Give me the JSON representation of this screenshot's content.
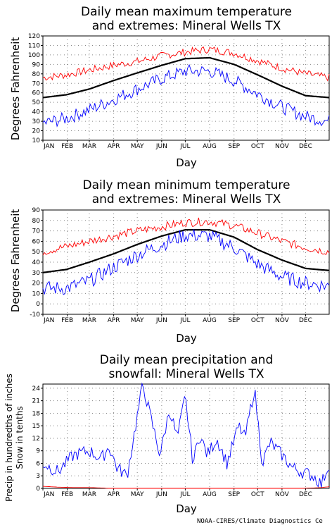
{
  "chart_data": [
    {
      "type": "line",
      "title": "Daily mean maximum temperature",
      "subtitle": "and extremes: Mineral Wells TX",
      "xlabel": "Day",
      "ylabel": "Degrees Fahrenheit",
      "ylim": [
        10,
        120
      ],
      "yticks": [
        10,
        20,
        30,
        40,
        50,
        60,
        70,
        80,
        90,
        100,
        110,
        120
      ],
      "months": [
        "JAN",
        "FEB",
        "MAR",
        "APR",
        "MAY",
        "JUN",
        "JUL",
        "AUG",
        "SEP",
        "OCT",
        "NOV",
        "DEC"
      ],
      "grid": true,
      "x": [
        1,
        31,
        60,
        91,
        121,
        152,
        182,
        213,
        244,
        274,
        305,
        335,
        365
      ],
      "series": [
        {
          "color": "#ff0000",
          "values": [
            76,
            79,
            84,
            89,
            93,
            99,
            103,
            106,
            102,
            94,
            86,
            80,
            76
          ]
        },
        {
          "color": "#000000",
          "values": [
            55,
            58,
            64,
            73,
            81,
            89,
            96,
            97,
            90,
            79,
            67,
            57,
            55
          ]
        },
        {
          "color": "#0000ff",
          "values": [
            28,
            33,
            42,
            53,
            64,
            75,
            83,
            83,
            73,
            59,
            45,
            35,
            30
          ]
        }
      ]
    },
    {
      "type": "line",
      "title": "Daily mean minimum temperature",
      "subtitle": "and extremes: Mineral Wells TX",
      "xlabel": "Day",
      "ylabel": "Degrees Fahrenheit",
      "ylim": [
        -10,
        90
      ],
      "yticks": [
        -10,
        0,
        10,
        20,
        30,
        40,
        50,
        60,
        70,
        80,
        90
      ],
      "months": [
        "JAN",
        "FEB",
        "MAR",
        "APR",
        "MAY",
        "JUN",
        "JUL",
        "AUG",
        "SEP",
        "OCT",
        "NOV",
        "DEC"
      ],
      "grid": true,
      "x": [
        1,
        31,
        60,
        91,
        121,
        152,
        182,
        213,
        244,
        274,
        305,
        335,
        365
      ],
      "series": [
        {
          "color": "#ff0000",
          "values": [
            50,
            55,
            60,
            65,
            70,
            74,
            78,
            79,
            75,
            68,
            60,
            54,
            50
          ]
        },
        {
          "color": "#000000",
          "values": [
            30,
            33,
            40,
            48,
            57,
            65,
            71,
            71,
            64,
            52,
            42,
            34,
            32
          ]
        },
        {
          "color": "#0000ff",
          "values": [
            15,
            15,
            22,
            35,
            47,
            57,
            66,
            65,
            54,
            38,
            26,
            20,
            17
          ]
        }
      ]
    },
    {
      "type": "line",
      "title": "Daily mean precipitation and",
      "subtitle": "snowfall: Mineral Wells TX",
      "xlabel": "Day",
      "ylabel": "Precip in hundredths of inches",
      "ylabel2": "Snow in tenths",
      "ylim": [
        0,
        25
      ],
      "yticks": [
        0,
        3,
        6,
        9,
        12,
        15,
        18,
        21,
        24
      ],
      "months": [
        "JAN",
        "FEB",
        "MAR",
        "APR",
        "MAY",
        "JUN",
        "JUL",
        "AUG",
        "SEP",
        "OCT",
        "NOV",
        "DEC"
      ],
      "grid": true,
      "x": [
        1,
        20,
        40,
        60,
        75,
        85,
        95,
        108,
        118,
        128,
        138,
        150,
        162,
        172,
        182,
        192,
        200,
        210,
        222,
        235,
        250,
        258,
        270,
        280,
        290,
        305,
        318,
        330,
        345,
        355,
        365
      ],
      "series": [
        {
          "color": "#0000ff",
          "values": [
            6,
            4,
            8,
            9,
            7,
            10,
            5,
            3,
            14,
            25,
            17,
            8,
            19,
            12,
            22,
            6,
            13,
            8,
            12,
            6,
            15,
            12,
            24,
            6,
            11,
            8,
            5,
            4,
            3,
            1,
            6
          ]
        },
        {
          "color": "#ff0000",
          "values": [
            0.5,
            0.3,
            0.2,
            0.2,
            0.1,
            0,
            0,
            0,
            0,
            0,
            0,
            0,
            0,
            0,
            0,
            0,
            0,
            0,
            0,
            0,
            0,
            0,
            0,
            0,
            0,
            0,
            0,
            0,
            0.1,
            0.2,
            0.4
          ]
        }
      ]
    }
  ],
  "credit": "NOAA-CIRES/Climate Diagnostics Ce"
}
